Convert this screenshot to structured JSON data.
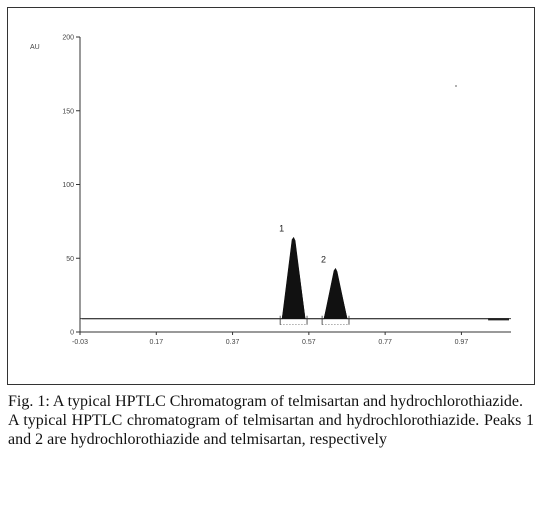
{
  "caption": {
    "title": "Fig. 1: A typical HPTLC Chromatogram of telmisartan and hydrochlorothiazide.",
    "text": "A typical HPTLC chromatogram of telmisartan and hydrochlorothiazide. Peaks 1 and 2 are hydrochlorothiazide and telmisartan, respectively"
  },
  "chart_data": {
    "type": "line",
    "title": "",
    "xlabel": "",
    "ylabel": "AU",
    "xlim": [
      -0.03,
      1.1
    ],
    "ylim": [
      0,
      200
    ],
    "x_ticks": [
      -0.03,
      0.17,
      0.37,
      0.57,
      0.77,
      0.97
    ],
    "x_tick_labels": [
      "-0.03",
      "0.17",
      "0.37",
      "0.57",
      "0.77",
      "0.97"
    ],
    "y_ticks": [
      0,
      50,
      100,
      150,
      200
    ],
    "y_tick_labels": [
      "0",
      "50",
      "100",
      "150",
      "200"
    ],
    "grid": false,
    "legend": "none",
    "baseline": 9,
    "series": [
      {
        "x": [
          -0.03,
          0.5,
          0.515,
          0.53,
          0.545,
          0.56,
          0.575,
          0.59,
          0.61,
          0.625,
          0.64,
          0.655,
          0.67,
          0.685,
          0.7,
          1.1
        ],
        "y": [
          9,
          9,
          30,
          64,
          38,
          9,
          9,
          9,
          9,
          24,
          43,
          26,
          9,
          9,
          9,
          9
        ]
      }
    ],
    "peaks": [
      {
        "label": "1",
        "rf": 0.53,
        "height": 64,
        "start": 0.5,
        "end": 0.56
      },
      {
        "label": "2",
        "rf": 0.64,
        "height": 43,
        "start": 0.61,
        "end": 0.67
      }
    ]
  }
}
